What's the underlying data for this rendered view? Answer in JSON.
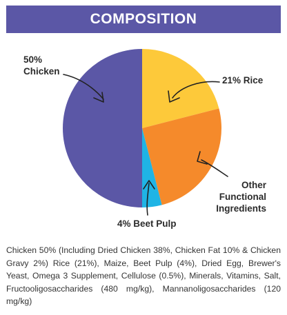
{
  "header": {
    "title": "COMPOSITION"
  },
  "chart_data": {
    "type": "pie",
    "slices": [
      {
        "label": "50% Chicken",
        "label_lines": [
          "50%",
          "Chicken"
        ],
        "value": 50,
        "color": "#5b57a6"
      },
      {
        "label": "21% Rice",
        "label_lines": [
          "21% Rice"
        ],
        "value": 21,
        "color": "#fdc93a"
      },
      {
        "label": "Other Functional Ingredients",
        "label_lines": [
          "Other",
          "Functional",
          "Ingredients"
        ],
        "value": 25,
        "color": "#f58a2b"
      },
      {
        "label": "4% Beet Pulp",
        "label_lines": [
          "4% Beet Pulp"
        ],
        "value": 4,
        "color": "#1fb4e5"
      }
    ]
  },
  "composition_text": "Chicken 50% (Including Dried Chicken 38%, Chicken Fat 10% & Chicken Gravy 2%) Rice (21%), Maize, Beet Pulp (4%), Dried Egg, Brewer's Yeast, Omega 3 Supplement, Cellulose (0.5%), Minerals, Vitamins, Salt, Fructooligosaccharides (480 mg/kg), Mannanoligosaccharides (120 mg/kg)"
}
